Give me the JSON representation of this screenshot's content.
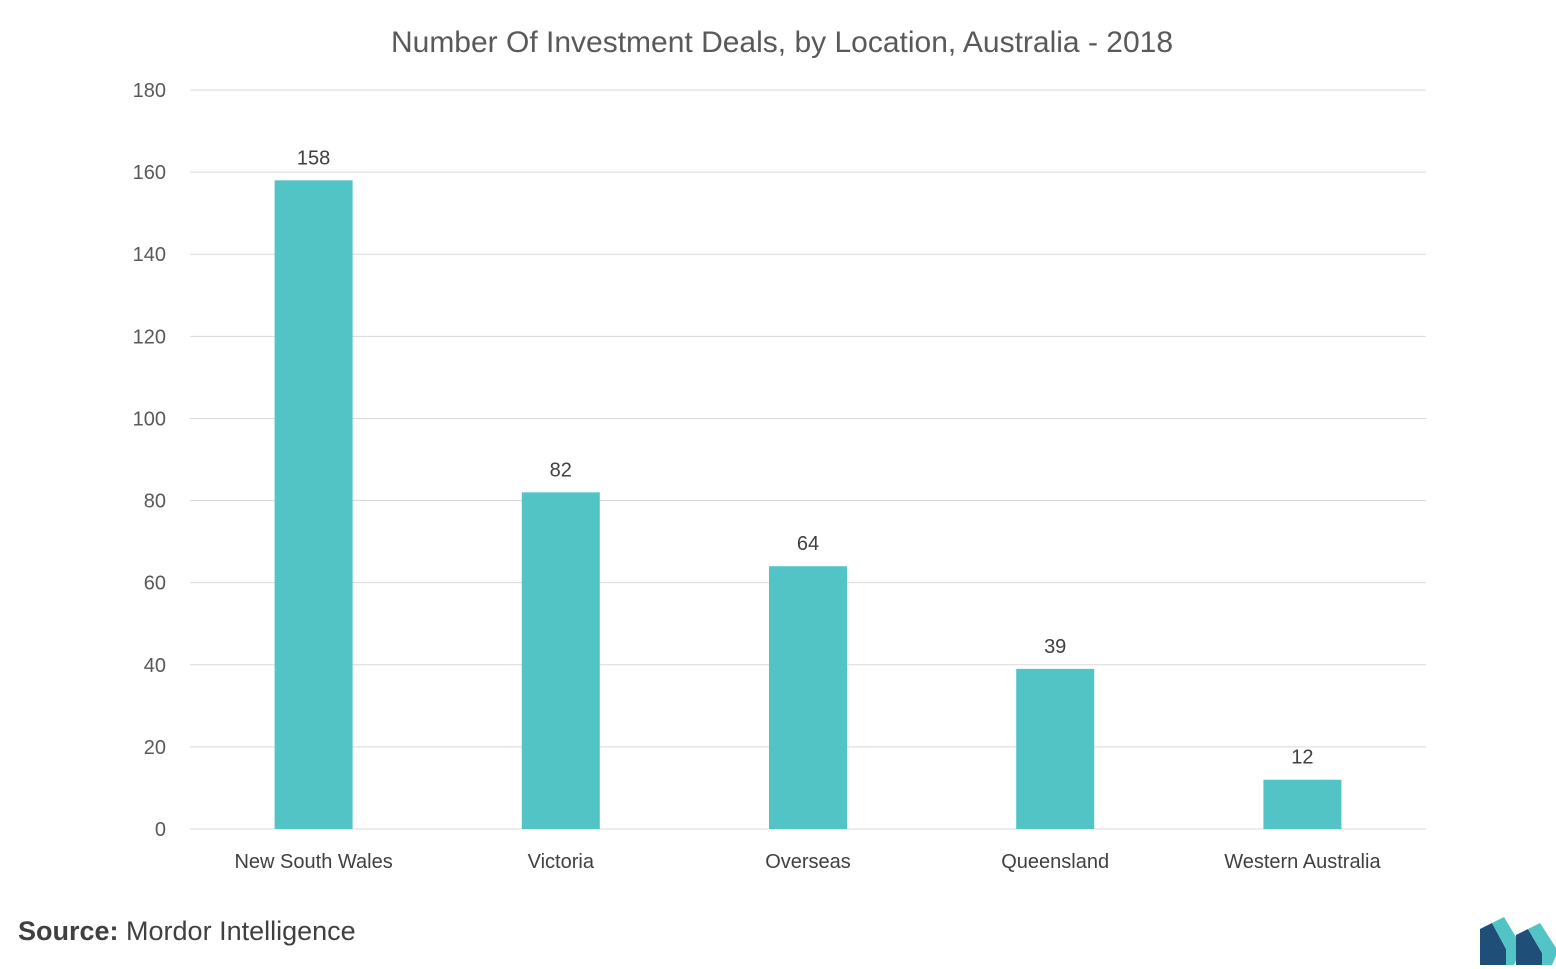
{
  "chart_data": {
    "type": "bar",
    "title": "Number Of Investment Deals, by Location, Australia - 2018",
    "categories": [
      "New South Wales",
      "Victoria",
      "Overseas",
      "Queensland",
      "Western Australia"
    ],
    "values": [
      158,
      82,
      64,
      39,
      12
    ],
    "data_labels": [
      "158",
      "82",
      "64",
      "39",
      "12"
    ],
    "ylim": [
      0,
      180
    ],
    "yticks": [
      0,
      20,
      40,
      60,
      80,
      100,
      120,
      140,
      160,
      180
    ],
    "xlabel": "",
    "ylabel": "",
    "grid": true,
    "bar_color": "#53c4c6"
  },
  "source": {
    "label": "Source:",
    "text": "Mordor Intelligence"
  },
  "logo": {
    "icon": "mordor-intelligence-logo",
    "colors": [
      "#1f4e79",
      "#53c4c6"
    ]
  }
}
